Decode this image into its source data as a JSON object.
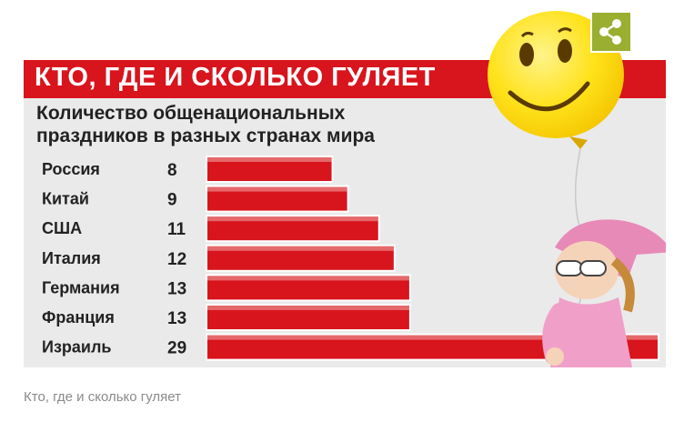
{
  "figure": {
    "title": "КТО, ГДЕ И СКОЛЬКО ГУЛЯЕТ",
    "subtitle_line1": "Количество общенациональных",
    "subtitle_line2": "праздников в разных странах мира"
  },
  "chart_data": {
    "type": "bar",
    "orientation": "horizontal",
    "title": "КТО, ГДЕ И СКОЛЬКО ГУЛЯЕТ",
    "subtitle": "Количество общенациональных праздников в разных странах мира",
    "categories": [
      "Россия",
      "Китай",
      "США",
      "Италия",
      "Германия",
      "Франция",
      "Израиль"
    ],
    "values": [
      8,
      9,
      11,
      12,
      13,
      13,
      29
    ],
    "xlim": [
      0,
      29
    ],
    "bar_color": "#d8141d",
    "grid": false,
    "legend": "none"
  },
  "colors": {
    "header_red": "#d8141d",
    "bar_red": "#d8141d",
    "panel_gray": "#eaeaea",
    "share_green": "#9aae2f"
  },
  "share": {
    "icon": "share-icon"
  },
  "caption": "Кто, где и сколько гуляет"
}
